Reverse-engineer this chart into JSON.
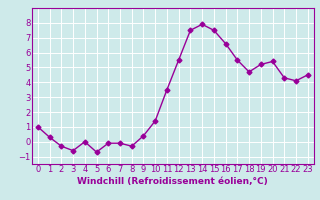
{
  "x": [
    0,
    1,
    2,
    3,
    4,
    5,
    6,
    7,
    8,
    9,
    10,
    11,
    12,
    13,
    14,
    15,
    16,
    17,
    18,
    19,
    20,
    21,
    22,
    23
  ],
  "y": [
    1.0,
    0.3,
    -0.3,
    -0.6,
    0.0,
    -0.7,
    -0.1,
    -0.1,
    -0.3,
    0.4,
    1.4,
    3.5,
    5.5,
    7.5,
    7.9,
    7.5,
    6.6,
    5.5,
    4.7,
    5.2,
    5.4,
    4.3,
    4.1,
    4.5
  ],
  "line_color": "#990099",
  "marker": "D",
  "marker_size": 2.5,
  "linewidth": 1.0,
  "bg_color": "#ceeaea",
  "grid_color": "#ffffff",
  "xlabel": "Windchill (Refroidissement éolien,°C)",
  "xlabel_fontsize": 6.5,
  "tick_fontsize": 6.0,
  "xlim": [
    -0.5,
    23.5
  ],
  "ylim": [
    -1.5,
    9.0
  ],
  "yticks": [
    -1,
    0,
    1,
    2,
    3,
    4,
    5,
    6,
    7,
    8
  ],
  "xticks": [
    0,
    1,
    2,
    3,
    4,
    5,
    6,
    7,
    8,
    9,
    10,
    11,
    12,
    13,
    14,
    15,
    16,
    17,
    18,
    19,
    20,
    21,
    22,
    23
  ]
}
